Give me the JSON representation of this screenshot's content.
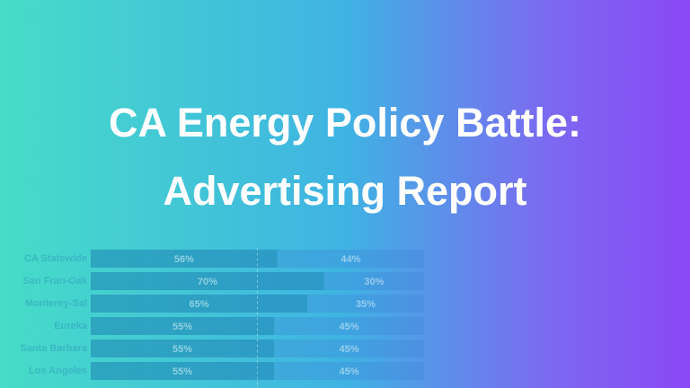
{
  "heading": {
    "lines": [
      "CA Energy Policy Battle:",
      "Advertising Report"
    ]
  },
  "chart_data": {
    "type": "stacked-bar",
    "orientation": "horizontal",
    "categories": [
      "CA Statewide",
      "San Fran-Oak",
      "Monterey-Sal",
      "Eureka",
      "Santa Barbara",
      "Los Angeles"
    ],
    "series": [
      {
        "color": "#1b7fb0",
        "values": [
          56,
          70,
          65,
          55,
          55,
          55
        ],
        "value_labels": [
          "56%",
          "70%",
          "65%",
          "55%",
          "55%",
          "55%"
        ]
      },
      {
        "color": "#3b86d6",
        "values": [
          44,
          30,
          35,
          45,
          45,
          45
        ],
        "value_labels": [
          "44%",
          "30%",
          "35%",
          "45%",
          "45%",
          "45%"
        ]
      }
    ],
    "xlim": [
      0,
      100
    ],
    "reference_line": 50
  }
}
